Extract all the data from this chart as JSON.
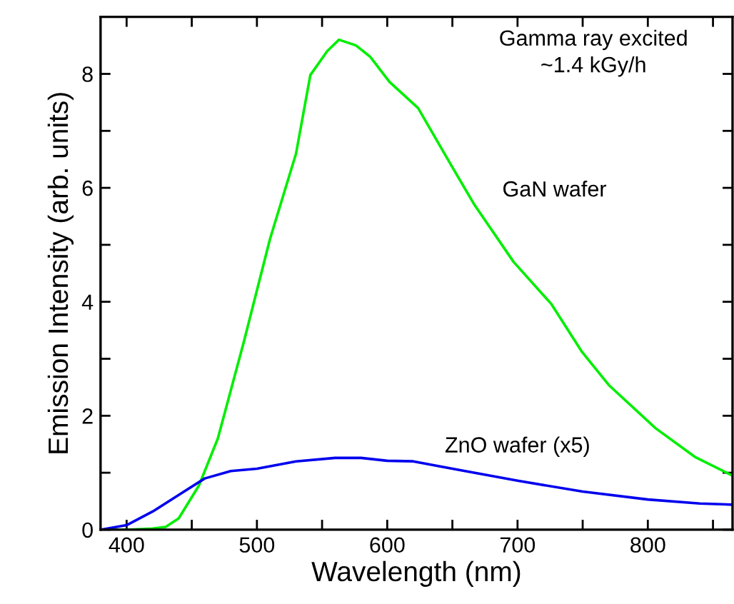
{
  "chart_data": {
    "type": "line",
    "xlabel": "Wavelength (nm)",
    "ylabel": "Emission Intensity (arb. units)",
    "annotations": [
      "Gamma ray excited\n~1.4 kGy/h"
    ],
    "xlim": [
      380,
      865
    ],
    "ylim": [
      0,
      9
    ],
    "xticks": [
      400,
      {
        "value": 450,
        "label": null
      },
      500,
      {
        "value": 550,
        "label": null
      },
      600,
      {
        "value": 650,
        "label": null
      },
      700,
      {
        "value": 750,
        "label": null
      },
      800,
      {
        "value": 850,
        "label": null
      }
    ],
    "yticks": [
      0,
      {
        "value": 1,
        "label": null
      },
      2,
      {
        "value": 3,
        "label": null
      },
      4,
      {
        "value": 5,
        "label": null
      },
      6,
      {
        "value": 7,
        "label": null
      },
      8
    ],
    "grid": false,
    "legend": false,
    "marker": "none",
    "line_style": "solid",
    "series": [
      {
        "name": "GaN wafer",
        "color": "#00ee00",
        "x": [
          380,
          400,
          420,
          430,
          440,
          455.6,
          470,
          490,
          510,
          530,
          541,
          554,
          563,
          576,
          587,
          601.7,
          623.7,
          649,
          667,
          697,
          726,
          749.5,
          770,
          806,
          836,
          865
        ],
        "values": [
          0,
          0,
          0.02,
          0.05,
          0.2,
          0.78,
          1.6,
          3.3,
          5.1,
          6.6,
          7.98,
          8.4,
          8.6,
          8.5,
          8.3,
          7.86,
          7.4,
          6.4,
          5.7,
          4.7,
          3.96,
          3.12,
          2.54,
          1.78,
          1.28,
          0.95
        ]
      },
      {
        "name": "ZnO wafer (x5)",
        "color": "#0000ee",
        "x": [
          380,
          400,
          420,
          440,
          460,
          480,
          500,
          530,
          560,
          580,
          600,
          620,
          650,
          700,
          750,
          800,
          840,
          865
        ],
        "values": [
          0,
          0.08,
          0.32,
          0.61,
          0.9,
          1.03,
          1.07,
          1.2,
          1.26,
          1.26,
          1.21,
          1.2,
          1.07,
          0.86,
          0.67,
          0.53,
          0.46,
          0.44
        ]
      }
    ]
  }
}
